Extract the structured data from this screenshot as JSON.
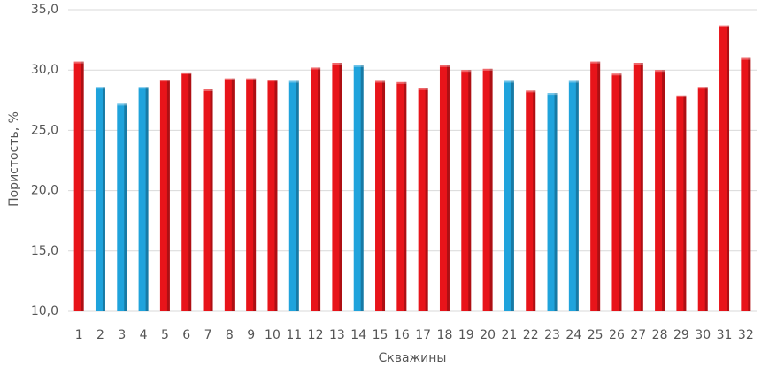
{
  "chart_data": {
    "type": "bar",
    "xlabel": "Скважины",
    "ylabel": "Пористость, %",
    "categories": [
      "1",
      "2",
      "3",
      "4",
      "5",
      "6",
      "7",
      "8",
      "9",
      "10",
      "11",
      "12",
      "13",
      "14",
      "15",
      "16",
      "17",
      "18",
      "19",
      "20",
      "21",
      "22",
      "23",
      "24",
      "25",
      "26",
      "27",
      "28",
      "29",
      "30",
      "31",
      "32"
    ],
    "values": [
      30.7,
      28.6,
      27.2,
      28.6,
      29.2,
      29.8,
      28.4,
      29.3,
      29.3,
      29.2,
      29.1,
      30.2,
      30.6,
      30.4,
      29.1,
      29.0,
      28.5,
      30.4,
      30.0,
      30.1,
      29.1,
      28.3,
      28.1,
      29.1,
      30.7,
      29.7,
      30.6,
      30.0,
      27.9,
      28.6,
      33.7,
      31.0
    ],
    "colors": [
      "#e8141a",
      "#1fa3dc",
      "#1fa3dc",
      "#1fa3dc",
      "#e8141a",
      "#e8141a",
      "#e8141a",
      "#e8141a",
      "#e8141a",
      "#e8141a",
      "#1fa3dc",
      "#e8141a",
      "#e8141a",
      "#1fa3dc",
      "#e8141a",
      "#e8141a",
      "#e8141a",
      "#e8141a",
      "#e8141a",
      "#e8141a",
      "#1fa3dc",
      "#e8141a",
      "#1fa3dc",
      "#1fa3dc",
      "#e8141a",
      "#e8141a",
      "#e8141a",
      "#e8141a",
      "#e8141a",
      "#e8141a",
      "#e8141a",
      "#e8141a"
    ],
    "ylim": [
      10,
      35
    ],
    "yticks": [
      {
        "value": 10,
        "label": "10,0"
      },
      {
        "value": 15,
        "label": "15,0"
      },
      {
        "value": 20,
        "label": "20,0"
      },
      {
        "value": 25,
        "label": "25,0"
      },
      {
        "value": 30,
        "label": "30,0"
      },
      {
        "value": 35,
        "label": "35,0"
      }
    ],
    "grid": true
  }
}
